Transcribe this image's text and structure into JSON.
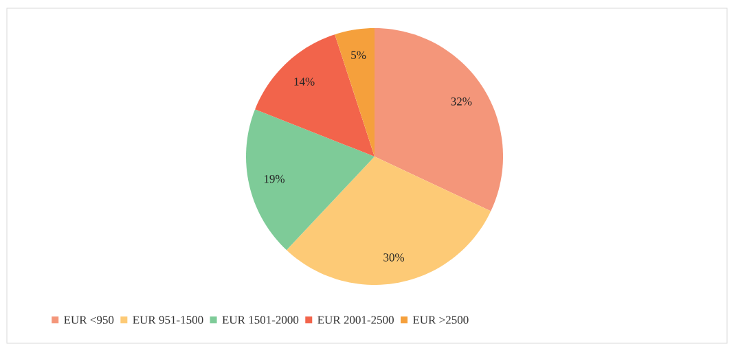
{
  "chart_data": {
    "type": "pie",
    "categories": [
      "EUR <950",
      "EUR 951-1500",
      "EUR 1501-2000",
      "EUR 2001-2500",
      "EUR >2500"
    ],
    "values": [
      32,
      30,
      19,
      14,
      5
    ],
    "value_labels": [
      "32%",
      "30%",
      "19%",
      "14%",
      "5%"
    ],
    "colors": [
      "#f4967a",
      "#fdca76",
      "#7ecb98",
      "#f2644b",
      "#f5a03c"
    ],
    "legend": "bottom"
  }
}
